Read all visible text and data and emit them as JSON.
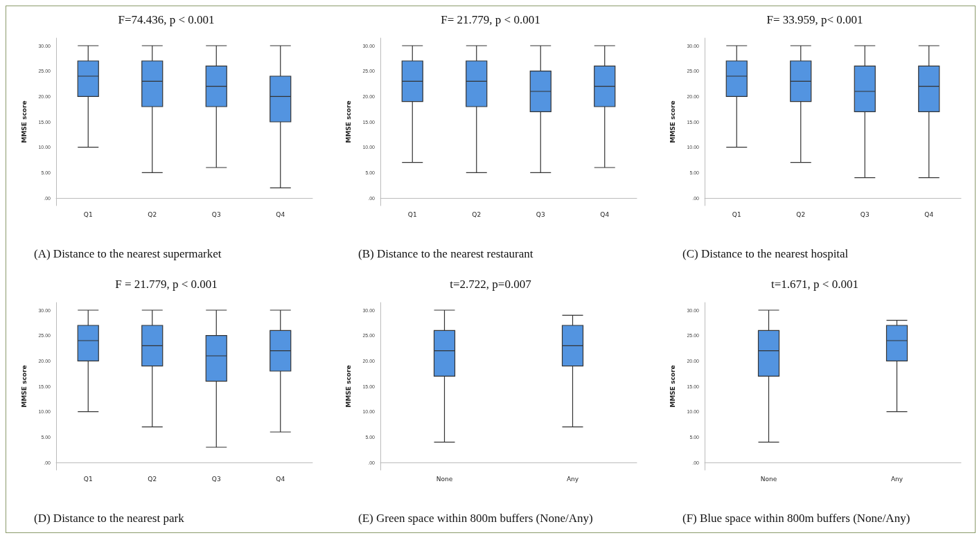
{
  "chart_data": [
    {
      "type": "box",
      "title": "F=74.436, p < 0.001",
      "annotations": [
        "(A) Distance to the nearest supermarket"
      ],
      "ylabel": "MMSE score",
      "categories": [
        "Q1",
        "Q2",
        "Q3",
        "Q4"
      ],
      "color": "#5394e0",
      "grid": false,
      "ylim": [
        -1.5,
        31.5
      ],
      "yticks": [
        {
          "value": 0,
          "label": ".00"
        },
        {
          "value": 5,
          "label": "5.00"
        },
        {
          "value": 10,
          "label": "10.00"
        },
        {
          "value": 15,
          "label": "15.00"
        },
        {
          "value": 20,
          "label": "20.00"
        },
        {
          "value": 25,
          "label": "25.00"
        },
        {
          "value": 30,
          "label": "30.00"
        }
      ],
      "boxes": [
        {
          "low": 10,
          "q1": 20,
          "median": 24,
          "q3": 27,
          "high": 30
        },
        {
          "low": 5,
          "q1": 18,
          "median": 23,
          "q3": 27,
          "high": 30
        },
        {
          "low": 6,
          "q1": 18,
          "median": 22,
          "q3": 26,
          "high": 30
        },
        {
          "low": 2,
          "q1": 15,
          "median": 20,
          "q3": 24,
          "high": 30
        }
      ]
    },
    {
      "type": "box",
      "title": "F= 21.779, p < 0.001",
      "annotations": [
        "(B) Distance to the nearest restaurant"
      ],
      "ylabel": "MMSE score",
      "categories": [
        "Q1",
        "Q2",
        "Q3",
        "Q4"
      ],
      "color": "#5394e0",
      "grid": false,
      "ylim": [
        -1.5,
        31.5
      ],
      "yticks": [
        {
          "value": 0,
          "label": ".00"
        },
        {
          "value": 5,
          "label": "5.00"
        },
        {
          "value": 10,
          "label": "10.00"
        },
        {
          "value": 15,
          "label": "15.00"
        },
        {
          "value": 20,
          "label": "20.00"
        },
        {
          "value": 25,
          "label": "25.00"
        },
        {
          "value": 30,
          "label": "30.00"
        }
      ],
      "boxes": [
        {
          "low": 7,
          "q1": 19,
          "median": 23,
          "q3": 27,
          "high": 30
        },
        {
          "low": 5,
          "q1": 18,
          "median": 23,
          "q3": 27,
          "high": 30
        },
        {
          "low": 5,
          "q1": 17,
          "median": 21,
          "q3": 25,
          "high": 30
        },
        {
          "low": 6,
          "q1": 18,
          "median": 22,
          "q3": 26,
          "high": 30
        }
      ]
    },
    {
      "type": "box",
      "title": "F= 33.959, p< 0.001",
      "annotations": [
        "(C) Distance to the nearest hospital"
      ],
      "ylabel": "MMSE score",
      "categories": [
        "Q1",
        "Q2",
        "Q3",
        "Q4"
      ],
      "color": "#5394e0",
      "grid": false,
      "ylim": [
        -1.5,
        31.5
      ],
      "yticks": [
        {
          "value": 0,
          "label": ".00"
        },
        {
          "value": 5,
          "label": "5.00"
        },
        {
          "value": 10,
          "label": "10.00"
        },
        {
          "value": 15,
          "label": "15.00"
        },
        {
          "value": 20,
          "label": "20.00"
        },
        {
          "value": 25,
          "label": "25.00"
        },
        {
          "value": 30,
          "label": "30.00"
        }
      ],
      "boxes": [
        {
          "low": 10,
          "q1": 20,
          "median": 24,
          "q3": 27,
          "high": 30
        },
        {
          "low": 7,
          "q1": 19,
          "median": 23,
          "q3": 27,
          "high": 30
        },
        {
          "low": 4,
          "q1": 17,
          "median": 21,
          "q3": 26,
          "high": 30
        },
        {
          "low": 4,
          "q1": 17,
          "median": 22,
          "q3": 26,
          "high": 30
        }
      ]
    },
    {
      "type": "box",
      "title": "F = 21.779, p < 0.001",
      "annotations": [
        "(D) Distance to the nearest park"
      ],
      "ylabel": "MMSE score",
      "categories": [
        "Q1",
        "Q2",
        "Q3",
        "Q4"
      ],
      "color": "#5394e0",
      "grid": false,
      "ylim": [
        -1.5,
        31.5
      ],
      "yticks": [
        {
          "value": 0,
          "label": ".00"
        },
        {
          "value": 5,
          "label": "5.00"
        },
        {
          "value": 10,
          "label": "10.00"
        },
        {
          "value": 15,
          "label": "15.00"
        },
        {
          "value": 20,
          "label": "20.00"
        },
        {
          "value": 25,
          "label": "25.00"
        },
        {
          "value": 30,
          "label": "30.00"
        }
      ],
      "boxes": [
        {
          "low": 10,
          "q1": 20,
          "median": 24,
          "q3": 27,
          "high": 30
        },
        {
          "low": 7,
          "q1": 19,
          "median": 23,
          "q3": 27,
          "high": 30
        },
        {
          "low": 3,
          "q1": 16,
          "median": 21,
          "q3": 25,
          "high": 30
        },
        {
          "low": 6,
          "q1": 18,
          "median": 22,
          "q3": 26,
          "high": 30
        }
      ]
    },
    {
      "type": "box",
      "title": "t=2.722, p=0.007",
      "annotations": [
        "(E) Green space within 800m buffers (None/Any)"
      ],
      "ylabel": "MMSE score",
      "categories": [
        "None",
        "Any"
      ],
      "color": "#5394e0",
      "grid": false,
      "ylim": [
        -1.5,
        31.5
      ],
      "yticks": [
        {
          "value": 0,
          "label": ".00"
        },
        {
          "value": 5,
          "label": "5.00"
        },
        {
          "value": 10,
          "label": "10.00"
        },
        {
          "value": 15,
          "label": "15.00"
        },
        {
          "value": 20,
          "label": "20.00"
        },
        {
          "value": 25,
          "label": "25.00"
        },
        {
          "value": 30,
          "label": "30.00"
        }
      ],
      "boxes": [
        {
          "low": 4,
          "q1": 17,
          "median": 22,
          "q3": 26,
          "high": 30
        },
        {
          "low": 7,
          "q1": 19,
          "median": 23,
          "q3": 27,
          "high": 29
        }
      ]
    },
    {
      "type": "box",
      "title": "t=1.671, p < 0.001",
      "annotations": [
        "(F) Blue space within 800m buffers (None/Any)"
      ],
      "ylabel": "MMSE score",
      "categories": [
        "None",
        "Any"
      ],
      "color": "#5394e0",
      "grid": false,
      "ylim": [
        -1.5,
        31.5
      ],
      "yticks": [
        {
          "value": 0,
          "label": ".00"
        },
        {
          "value": 5,
          "label": "5.00"
        },
        {
          "value": 10,
          "label": "10.00"
        },
        {
          "value": 15,
          "label": "15.00"
        },
        {
          "value": 20,
          "label": "20.00"
        },
        {
          "value": 25,
          "label": "25.00"
        },
        {
          "value": 30,
          "label": "30.00"
        }
      ],
      "boxes": [
        {
          "low": 4,
          "q1": 17,
          "median": 22,
          "q3": 26,
          "high": 30
        },
        {
          "low": 10,
          "q1": 20,
          "median": 24,
          "q3": 27,
          "high": 28
        }
      ]
    }
  ]
}
